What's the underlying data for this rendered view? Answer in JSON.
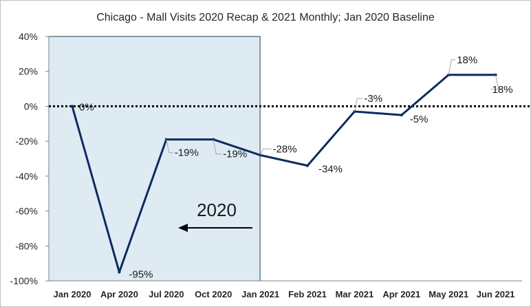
{
  "chart_data": {
    "type": "line",
    "title": "Chicago - Mall Visits 2020 Recap & 2021 Monthly; Jan 2020 Baseline",
    "xlabel": "",
    "ylabel": "",
    "ylim": [
      -100,
      40
    ],
    "yticks": [
      40,
      20,
      0,
      -20,
      -40,
      -60,
      -80,
      -100
    ],
    "ytick_labels": [
      "40%",
      "20%",
      "0%",
      "-20%",
      "-40%",
      "-60%",
      "-80%",
      "-100%"
    ],
    "categories": [
      "Jan 2020",
      "Apr 2020",
      "Jul 2020",
      "Oct 2020",
      "Jan 2021",
      "Feb 2021",
      "Mar 2021",
      "Apr 2021",
      "May 2021",
      "Jun 2021"
    ],
    "series": [
      {
        "values": [
          0,
          -95,
          -19,
          -19,
          -28,
          -34,
          -3,
          -5,
          18,
          18
        ],
        "labels": [
          "0%",
          "-95%",
          "-19%",
          "-19%",
          "-28%",
          "-34%",
          "-3%",
          "-5%",
          "18%",
          "18%"
        ],
        "color": "#0d2a5e"
      }
    ],
    "baseline": {
      "value": 0,
      "style": "dotted",
      "color": "#000000"
    },
    "highlight": {
      "from": "Jan 2020",
      "to": "Jan 2021",
      "color": "#deebf3",
      "annotation": "2020",
      "arrow": "left"
    },
    "grid": false,
    "legend": "none"
  }
}
